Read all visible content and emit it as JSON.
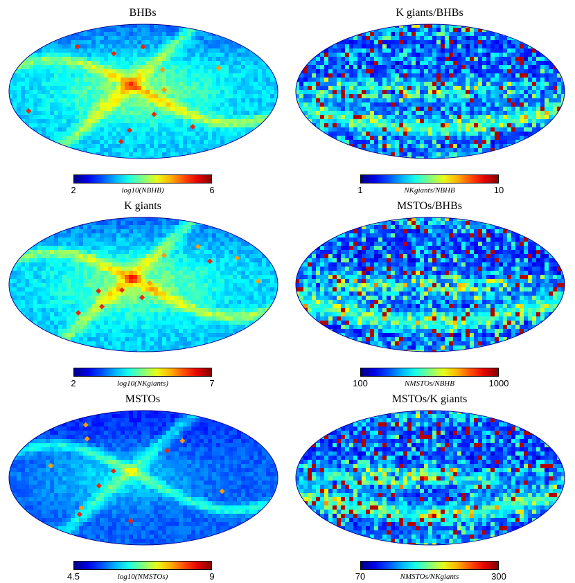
{
  "chart_data": [
    {
      "type": "heatmap",
      "projection": "mollweide all-sky map",
      "title": "BHBs",
      "colormap": "jet",
      "colorbar": {
        "min": "2",
        "max": "6",
        "label": "log10(NBHB)",
        "label_main": "log",
        "label_sub": "10",
        "label_arg": "(N",
        "label_arg_sub": "BHB",
        "label_end": ")"
      },
      "features": {
        "density": "medium",
        "stream_level": 0.55,
        "hotspots": 12
      }
    },
    {
      "type": "heatmap",
      "projection": "mollweide all-sky map",
      "title": "K giants/BHBs",
      "colormap": "jet",
      "colorbar": {
        "min": "1",
        "max": "10",
        "label": "NKgiants/NBHB",
        "label_main": "",
        "label_sub": "",
        "label_arg": "N",
        "label_arg_sub": "Kgiants",
        "label_end": "/N BHB"
      },
      "features": {
        "density": "noisy",
        "stream_level": 0.9,
        "hotspots": 0
      }
    },
    {
      "type": "heatmap",
      "projection": "mollweide all-sky map",
      "title": "K giants",
      "colormap": "jet",
      "colorbar": {
        "min": "2",
        "max": "7",
        "label": "log10(NKgiants)",
        "label_main": "log",
        "label_sub": "10",
        "label_arg": "(N",
        "label_arg_sub": "Kgiants",
        "label_end": ")"
      },
      "features": {
        "density": "medium",
        "stream_level": 0.6,
        "hotspots": 12
      }
    },
    {
      "type": "heatmap",
      "projection": "mollweide all-sky map",
      "title": "MSTOs/BHBs",
      "colormap": "jet",
      "colorbar": {
        "min": "100",
        "max": "1000",
        "label": "NMSTOs/NBHB",
        "label_main": "",
        "label_sub": "",
        "label_arg": "N",
        "label_arg_sub": "MSTOs",
        "label_end": "/N BHB"
      },
      "features": {
        "density": "noisy",
        "stream_level": 0.85,
        "hotspots": 0
      }
    },
    {
      "type": "heatmap",
      "projection": "mollweide all-sky map",
      "title": "MSTOs",
      "colormap": "jet",
      "colorbar": {
        "min": "4.5",
        "max": "9",
        "label": "log10(NMSTOs)",
        "label_main": "log",
        "label_sub": "10",
        "label_arg": "(N",
        "label_arg_sub": "MSTOs",
        "label_end": ")"
      },
      "features": {
        "density": "low",
        "stream_level": 0.55,
        "hotspots": 12
      }
    },
    {
      "type": "heatmap",
      "projection": "mollweide all-sky map",
      "title": "MSTOs/K giants",
      "colormap": "jet",
      "colorbar": {
        "min": "70",
        "max": "300",
        "label": "NMSTOs/NKgiants",
        "label_main": "",
        "label_sub": "",
        "label_arg": "N",
        "label_arg_sub": "MSTOs",
        "label_end": "/N Kgiants"
      },
      "features": {
        "density": "noisy",
        "stream_level": 0.4,
        "hotspots": 0
      }
    }
  ]
}
